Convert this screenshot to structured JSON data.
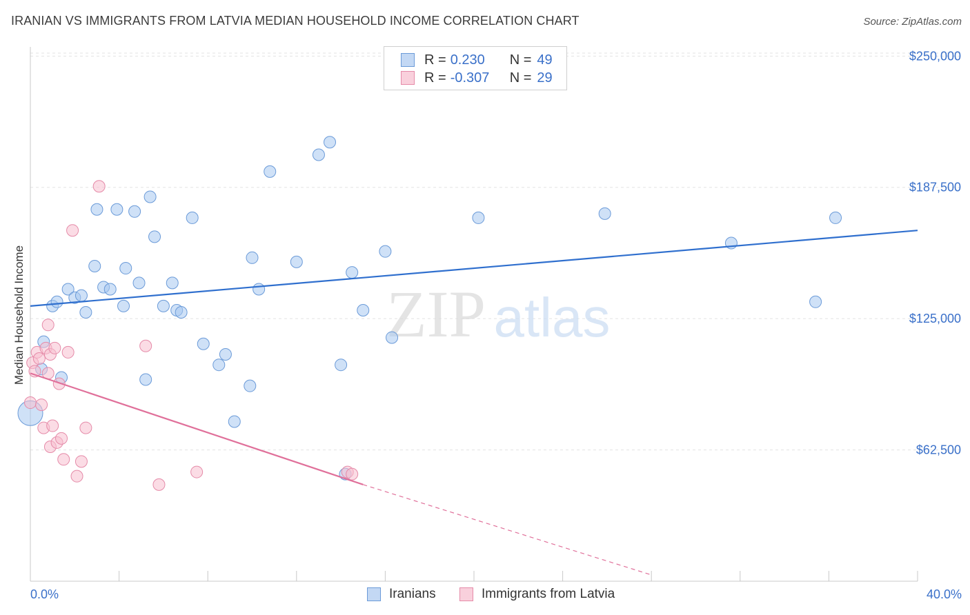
{
  "header": {
    "title": "IRANIAN VS IMMIGRANTS FROM LATVIA MEDIAN HOUSEHOLD INCOME CORRELATION CHART",
    "source": "Source: ZipAtlas.com"
  },
  "watermark": {
    "part1": "ZIP",
    "part2": "atlas"
  },
  "legend": {
    "rows": [
      {
        "r_label": "R =",
        "r_value": "0.230",
        "n_label": "N =",
        "n_value": "49",
        "color": "#a8c8f0",
        "stroke": "#6a9ad8"
      },
      {
        "r_label": "R =",
        "r_value": "-0.307",
        "n_label": "N =",
        "n_value": "29",
        "color": "#f7c0d0",
        "stroke": "#e58aa8"
      }
    ]
  },
  "bottom_legend": {
    "items": [
      {
        "label": "Iranians",
        "color": "#a8c8f0",
        "stroke": "#6a9ad8"
      },
      {
        "label": "Immigrants from Latvia",
        "color": "#f7c0d0",
        "stroke": "#e58aa8"
      }
    ]
  },
  "axes": {
    "x_min_label": "0.0%",
    "x_max_label": "40.0%"
  },
  "chart_data": {
    "type": "scatter",
    "title": "IRANIAN VS IMMIGRANTS FROM LATVIA MEDIAN HOUSEHOLD INCOME CORRELATION CHART",
    "xlabel": "",
    "ylabel": "Median Household Income",
    "xlim": [
      0,
      40
    ],
    "ylim": [
      0,
      257000
    ],
    "y_ticks": [
      {
        "value": 62500,
        "label": "$62,500"
      },
      {
        "value": 125000,
        "label": "$125,000"
      },
      {
        "value": 187500,
        "label": "$187,500"
      },
      {
        "value": 250000,
        "label": "$250,000"
      }
    ],
    "x_ticks": [
      0,
      4,
      8,
      12,
      16,
      20,
      24,
      28,
      32,
      36,
      40
    ],
    "grid": true,
    "legend_position": "top-center",
    "series": [
      {
        "name": "Iranians",
        "color": "#a8c8f0",
        "stroke": "#6a9ad8",
        "trend": {
          "x": [
            0,
            40
          ],
          "y": [
            131000,
            167000
          ],
          "color": "#2f6fce"
        },
        "points": [
          [
            0.0,
            80000
          ],
          [
            0.5,
            101000
          ],
          [
            0.6,
            114000
          ],
          [
            1.0,
            131000
          ],
          [
            1.2,
            133000
          ],
          [
            1.4,
            97000
          ],
          [
            1.7,
            139000
          ],
          [
            2.0,
            135000
          ],
          [
            2.3,
            136000
          ],
          [
            2.5,
            128000
          ],
          [
            2.9,
            150000
          ],
          [
            3.0,
            177000
          ],
          [
            3.3,
            140000
          ],
          [
            3.6,
            139000
          ],
          [
            3.9,
            177000
          ],
          [
            4.2,
            131000
          ],
          [
            4.3,
            149000
          ],
          [
            4.7,
            176000
          ],
          [
            4.9,
            142000
          ],
          [
            5.2,
            96000
          ],
          [
            5.4,
            183000
          ],
          [
            5.6,
            164000
          ],
          [
            6.0,
            131000
          ],
          [
            6.4,
            142000
          ],
          [
            6.6,
            129000
          ],
          [
            6.8,
            128000
          ],
          [
            7.3,
            173000
          ],
          [
            7.8,
            113000
          ],
          [
            8.5,
            103000
          ],
          [
            8.8,
            108000
          ],
          [
            9.2,
            76000
          ],
          [
            9.9,
            93000
          ],
          [
            10.0,
            154000
          ],
          [
            10.3,
            139000
          ],
          [
            10.8,
            195000
          ],
          [
            12.0,
            152000
          ],
          [
            13.0,
            203000
          ],
          [
            13.5,
            209000
          ],
          [
            14.0,
            103000
          ],
          [
            14.2,
            51000
          ],
          [
            14.5,
            147000
          ],
          [
            15.0,
            129000
          ],
          [
            16.0,
            157000
          ],
          [
            16.3,
            116000
          ],
          [
            20.2,
            173000
          ],
          [
            25.9,
            175000
          ],
          [
            31.6,
            161000
          ],
          [
            35.4,
            133000
          ],
          [
            36.3,
            173000
          ]
        ]
      },
      {
        "name": "Immigrants from Latvia",
        "color": "#f7c0d0",
        "stroke": "#e58aa8",
        "trend": {
          "x": [
            0,
            15
          ],
          "y": [
            99000,
            46000
          ],
          "color": "#e0709a",
          "dashed_to": {
            "x": 28,
            "y": 3000
          }
        },
        "points": [
          [
            0.0,
            85000
          ],
          [
            0.1,
            104000
          ],
          [
            0.2,
            100000
          ],
          [
            0.3,
            109000
          ],
          [
            0.4,
            106000
          ],
          [
            0.5,
            84000
          ],
          [
            0.6,
            73000
          ],
          [
            0.7,
            111000
          ],
          [
            0.8,
            99000
          ],
          [
            0.8,
            122000
          ],
          [
            0.9,
            108000
          ],
          [
            0.9,
            64000
          ],
          [
            1.0,
            74000
          ],
          [
            1.1,
            111000
          ],
          [
            1.2,
            66000
          ],
          [
            1.3,
            94000
          ],
          [
            1.4,
            68000
          ],
          [
            1.5,
            58000
          ],
          [
            1.7,
            109000
          ],
          [
            1.9,
            167000
          ],
          [
            2.1,
            50000
          ],
          [
            2.3,
            57000
          ],
          [
            2.5,
            73000
          ],
          [
            3.1,
            188000
          ],
          [
            5.2,
            112000
          ],
          [
            5.8,
            46000
          ],
          [
            7.5,
            52000
          ],
          [
            14.3,
            52000
          ],
          [
            14.5,
            51000
          ]
        ]
      }
    ]
  }
}
